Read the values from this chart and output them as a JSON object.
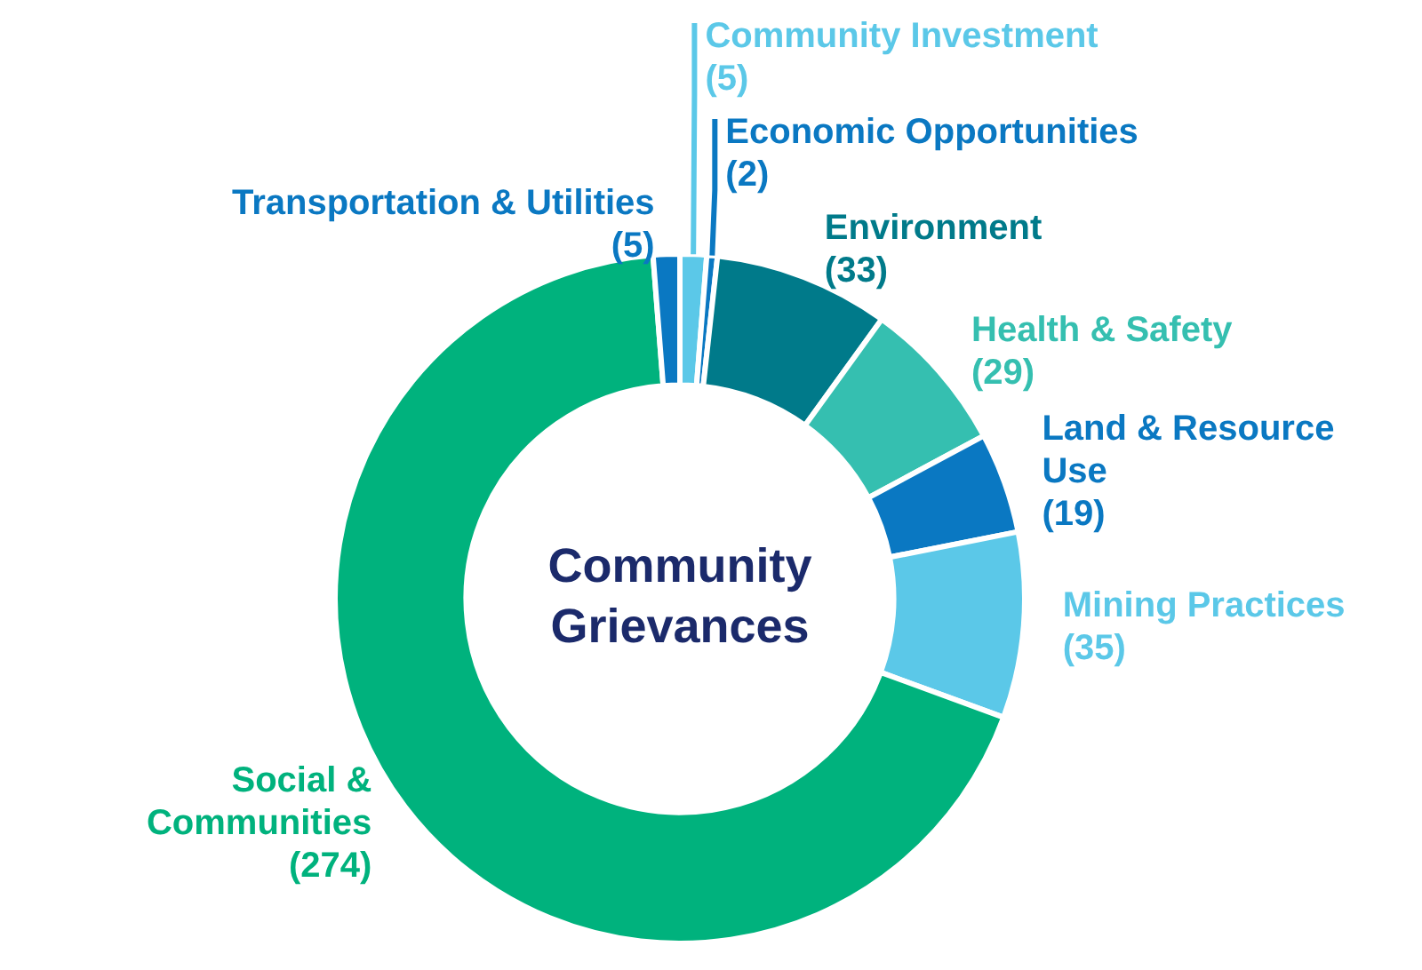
{
  "chart_data": {
    "type": "donut",
    "title": "Community Grievances",
    "categories": [
      "Community Investment",
      "Economic Opportunities",
      "Environment",
      "Health & Safety",
      "Land & Resource Use",
      "Mining Practices",
      "Social & Communities",
      "Transportation & Utilities"
    ],
    "values": [
      5,
      2,
      33,
      29,
      19,
      35,
      274,
      5
    ],
    "colors": [
      "#5bc8e8",
      "#0a78c2",
      "#007a8a",
      "#35bfb0",
      "#0a78c2",
      "#5bc8e8",
      "#00b27d",
      "#0a78c2"
    ],
    "value_labels": [
      "(5)",
      "(2)",
      "(33)",
      "(29)",
      "(19)",
      "(35)",
      "(274)",
      "(5)"
    ],
    "legend": false
  }
}
